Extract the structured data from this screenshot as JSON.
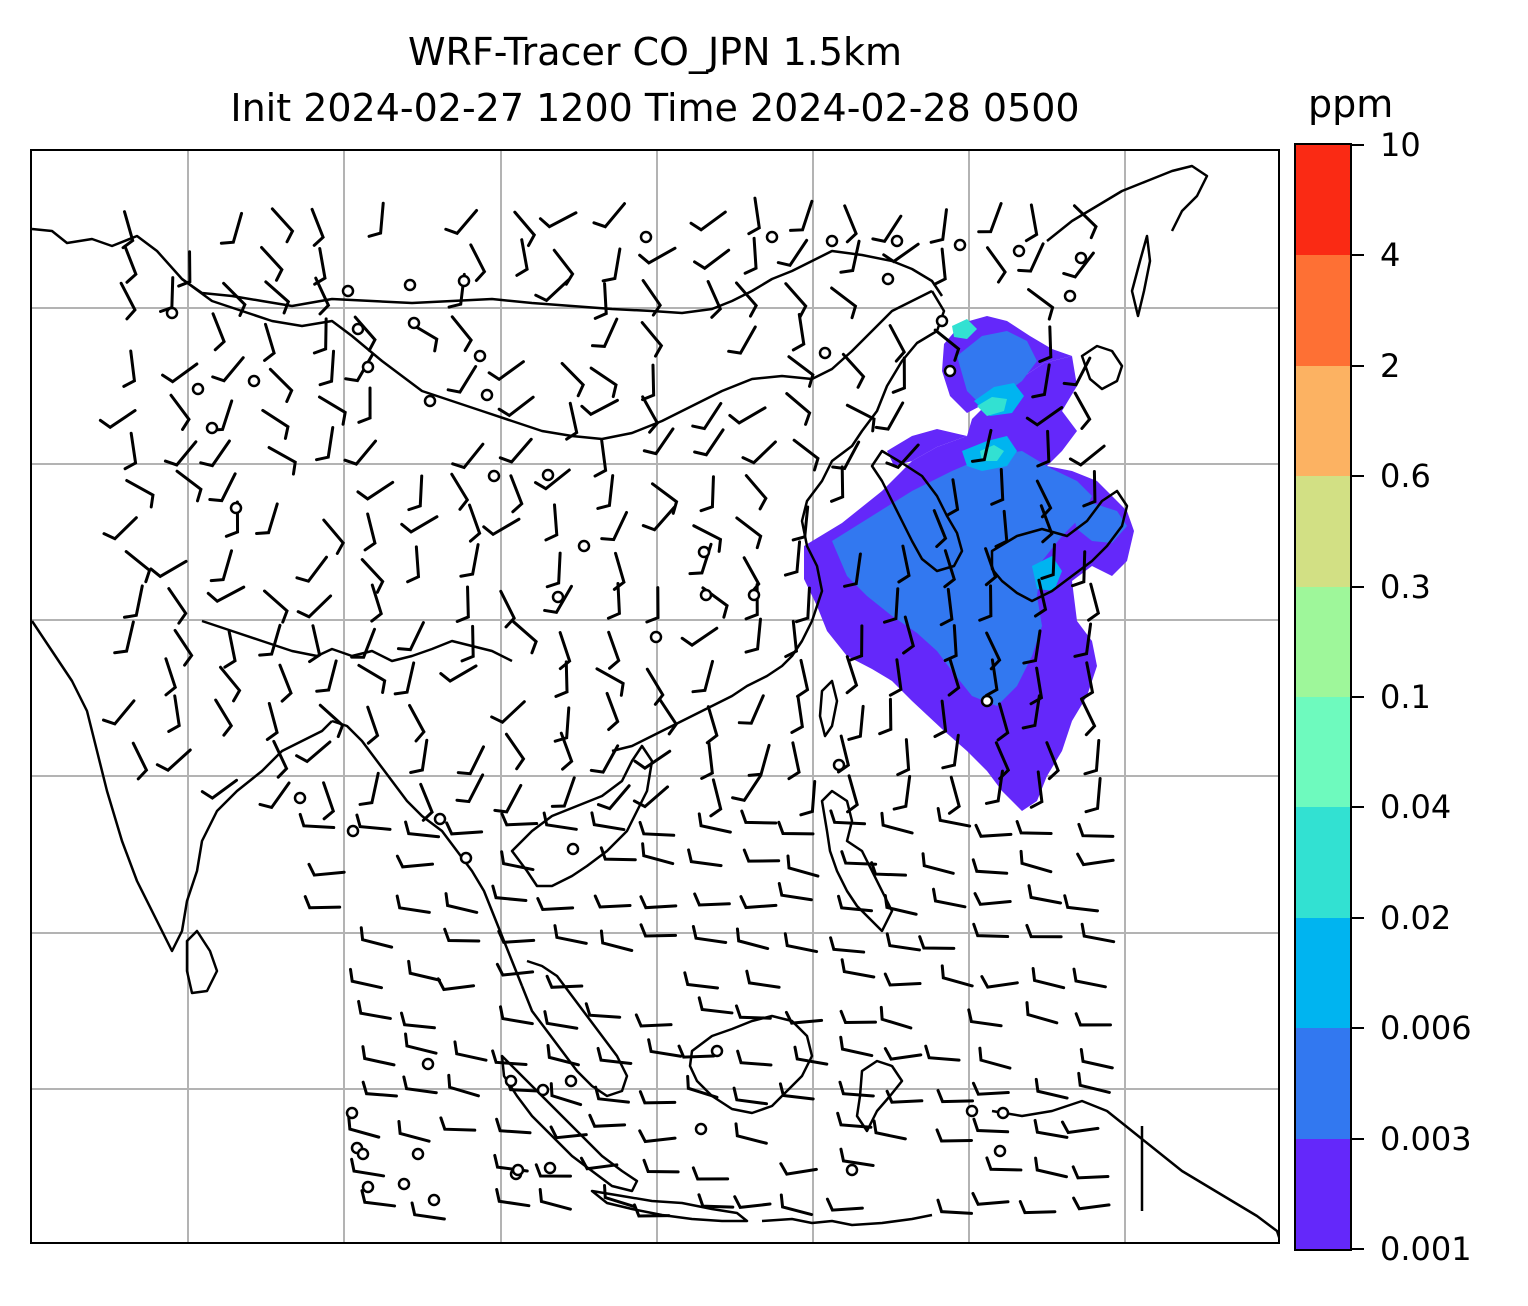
{
  "title": {
    "line1": "WRF-Tracer CO_JPN 1.5km",
    "line2": "Init 2024-02-27 1200 Time 2024-02-28 0500"
  },
  "colorbar": {
    "unit": "ppm",
    "levels": [
      "0.001",
      "0.003",
      "0.006",
      "0.02",
      "0.04",
      "0.1",
      "0.3",
      "0.6",
      "2",
      "4",
      "10"
    ],
    "colors": [
      "#6428fa",
      "#3278f0",
      "#00b4f0",
      "#32e1d2",
      "#6efabe",
      "#9ef79a",
      "#d2e084",
      "#fcb262",
      "#fe7034",
      "#fa2a14"
    ]
  },
  "map": {
    "grid": "on",
    "gridline_color": "#b3b3b3",
    "coastline_color": "#000000",
    "plume_colors_present": [
      "#6428fa",
      "#3278f0",
      "#00b4f0",
      "#32e1d2"
    ],
    "wind_barbs": "shown",
    "calm_markers": "circles"
  }
}
